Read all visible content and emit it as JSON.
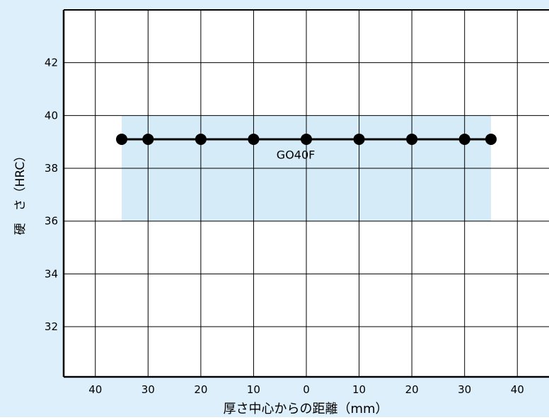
{
  "colors": {
    "background": "#dcefFa",
    "plot_background": "#ffffff",
    "band": "#d6ebf8",
    "grid": "#000000",
    "series": "#000000"
  },
  "chart_data": {
    "type": "line",
    "xlabel": "厚さ中心からの距離（mm）",
    "ylabel": "硬　さ（HRC）",
    "x_ticks": [
      "40",
      "30",
      "20",
      "10",
      "0",
      "10",
      "20",
      "30",
      "40"
    ],
    "x_tick_values": [
      -40,
      -30,
      -20,
      -10,
      0,
      10,
      20,
      30,
      40
    ],
    "xlim": [
      -46,
      46
    ],
    "y_ticks": [
      "32",
      "34",
      "36",
      "38",
      "40",
      "42"
    ],
    "y_tick_values": [
      32,
      34,
      36,
      38,
      40,
      42
    ],
    "ylim": [
      30.1,
      44
    ],
    "grid": true,
    "band": {
      "x": [
        -35,
        35
      ],
      "y": [
        36,
        40
      ]
    },
    "series": [
      {
        "name": "GO40F",
        "x": [
          -35,
          -30,
          -20,
          -10,
          0,
          10,
          20,
          30,
          35
        ],
        "y": [
          39.1,
          39.1,
          39.1,
          39.1,
          39.1,
          39.1,
          39.1,
          39.1,
          39.1
        ]
      }
    ],
    "annotations": [
      {
        "text": "GO40F",
        "x": -2,
        "y": 38.5
      }
    ]
  }
}
